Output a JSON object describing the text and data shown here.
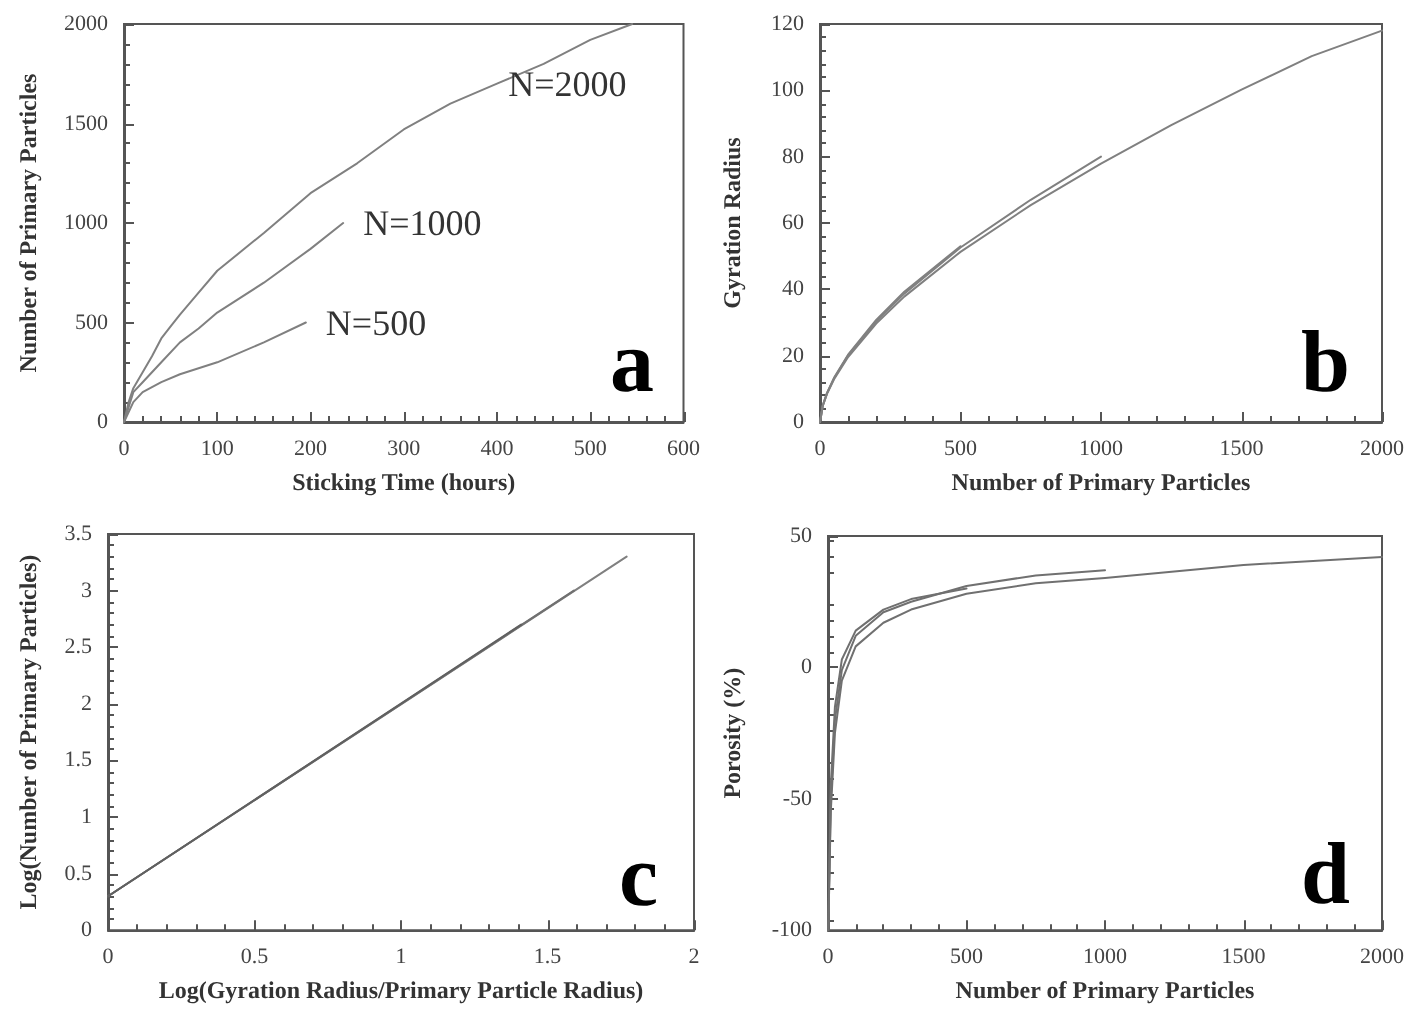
{
  "chart_data": [
    {
      "type": "line",
      "xlabel": "Sticking Time (hours)",
      "ylabel": "Number of Primary Particles",
      "annotations": [
        "a"
      ],
      "xlim": [
        0,
        600
      ],
      "ylim": [
        0,
        2000
      ],
      "xticks": [
        0,
        100,
        200,
        300,
        400,
        500,
        600
      ],
      "yticks": [
        0,
        500,
        1000,
        1500,
        2000
      ],
      "series": [
        {
          "name": "N=2000",
          "color": "#808080",
          "x": [
            0,
            5,
            10,
            20,
            30,
            40,
            50,
            60,
            80,
            100,
            150,
            200,
            250,
            300,
            350,
            400,
            450,
            500,
            545
          ],
          "values": [
            0,
            100,
            170,
            250,
            330,
            420,
            480,
            540,
            650,
            760,
            950,
            1150,
            1300,
            1470,
            1600,
            1700,
            1800,
            1920,
            2000
          ]
        },
        {
          "name": "N=1000",
          "color": "#808080",
          "x": [
            0,
            10,
            20,
            40,
            60,
            80,
            100,
            150,
            200,
            235
          ],
          "values": [
            0,
            150,
            200,
            300,
            400,
            470,
            550,
            700,
            870,
            1000
          ]
        },
        {
          "name": "N=500",
          "color": "#808080",
          "x": [
            0,
            10,
            20,
            40,
            60,
            100,
            150,
            195
          ],
          "values": [
            0,
            100,
            150,
            200,
            240,
            300,
            400,
            500
          ]
        }
      ]
    },
    {
      "type": "line",
      "xlabel": "Number of Primary Particles",
      "ylabel": "Gyration Radius",
      "annotations": [
        "b"
      ],
      "xlim": [
        0,
        2000
      ],
      "ylim": [
        0,
        120
      ],
      "xticks": [
        0,
        500,
        1000,
        1500,
        2000
      ],
      "yticks": [
        0,
        20,
        40,
        60,
        80,
        100,
        120
      ],
      "series": [
        {
          "color": "#808080",
          "x": [
            0,
            10,
            25,
            50,
            100,
            200,
            300,
            500,
            750,
            1000,
            1250,
            1500,
            1750,
            2000
          ],
          "values": [
            0,
            4.9,
            8.5,
            12.9,
            19.6,
            29.7,
            37.8,
            51.3,
            65.4,
            77.9,
            89.5,
            100.2,
            110.3,
            118
          ]
        },
        {
          "color": "#808080",
          "x": [
            0,
            10,
            25,
            50,
            100,
            200,
            300,
            500,
            750,
            1000
          ],
          "values": [
            0,
            5,
            8.7,
            13.2,
            20.1,
            30.4,
            38.7,
            52.6,
            67,
            80
          ]
        },
        {
          "color": "#808080",
          "x": [
            0,
            10,
            25,
            50,
            100,
            200,
            300,
            500
          ],
          "values": [
            0,
            5,
            8.8,
            13.3,
            20.3,
            30.8,
            39.3,
            53
          ]
        }
      ]
    },
    {
      "type": "line",
      "xlabel": "Log(Gyration Radius/Primary Particle Radius)",
      "ylabel": "Log(Number of Primary Particles)",
      "annotations": [
        "c"
      ],
      "xlim": [
        0,
        2
      ],
      "ylim": [
        0,
        3.5
      ],
      "xticks": [
        0,
        0.5,
        1,
        1.5,
        2
      ],
      "yticks": [
        0,
        0.5,
        1,
        1.5,
        2,
        2.5,
        3,
        3.5
      ],
      "series": [
        {
          "color": "#808080",
          "x": [
            0,
            1.77
          ],
          "values": [
            0.3,
            3.3
          ]
        },
        {
          "color": "#707070",
          "x": [
            0,
            1.59
          ],
          "values": [
            0.3,
            3
          ]
        },
        {
          "color": "#606060",
          "x": [
            0,
            1.41
          ],
          "values": [
            0.3,
            2.7
          ]
        }
      ]
    },
    {
      "type": "line",
      "xlabel": "Number of Primary Particles",
      "ylabel": "Porosity (%)",
      "annotations": [
        "d"
      ],
      "xlim": [
        0,
        2000
      ],
      "ylim": [
        -100,
        50
      ],
      "xticks": [
        0,
        500,
        1000,
        1500,
        2000
      ],
      "yticks": [
        -100,
        -50,
        0,
        50
      ],
      "series": [
        {
          "color": "#707070",
          "x": [
            1,
            10,
            25,
            50,
            100,
            200,
            300,
            500,
            750,
            1000,
            1500,
            2000
          ],
          "values": [
            -100,
            -55,
            -25,
            -5,
            8,
            17,
            22,
            28,
            32,
            34,
            39,
            42
          ]
        },
        {
          "color": "#707070",
          "x": [
            1,
            10,
            25,
            50,
            100,
            200,
            300,
            500,
            750,
            1000
          ],
          "values": [
            -100,
            -50,
            -20,
            -1,
            12,
            21,
            25,
            31,
            35,
            37
          ]
        },
        {
          "color": "#707070",
          "x": [
            1,
            10,
            25,
            50,
            100,
            200,
            300,
            500
          ],
          "values": [
            -100,
            -45,
            -15,
            3,
            14,
            22,
            26,
            30
          ]
        }
      ]
    }
  ]
}
